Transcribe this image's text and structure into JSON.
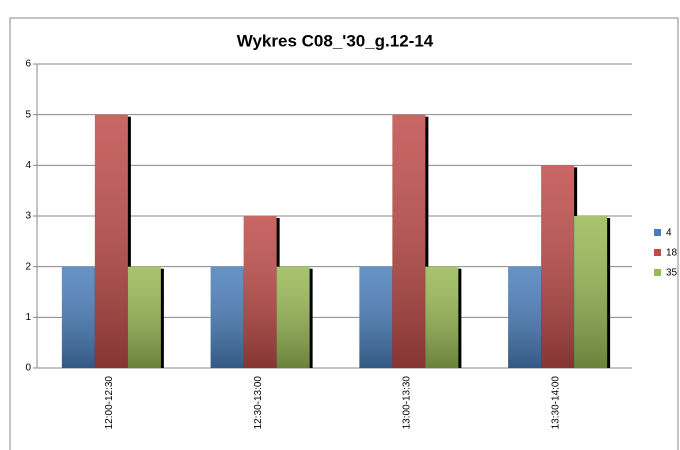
{
  "chart_data": {
    "type": "bar",
    "title": "Wykres C08_'30_g.12-14",
    "categories": [
      "12:00-12:30",
      "12:30-13:00",
      "13:00-13:30",
      "13:30-14:00"
    ],
    "series": [
      {
        "name": "4",
        "color": "#4a7ebb",
        "values": [
          2,
          2,
          2,
          2
        ]
      },
      {
        "name": "18",
        "color": "#be4b48",
        "values": [
          5,
          3,
          5,
          4
        ]
      },
      {
        "name": "35",
        "color": "#98b954",
        "values": [
          2,
          2,
          2,
          3
        ]
      }
    ],
    "ylim": [
      0,
      6
    ],
    "yticks": [
      0,
      1,
      2,
      3,
      4,
      5,
      6
    ],
    "grid": true,
    "legend": "right"
  }
}
